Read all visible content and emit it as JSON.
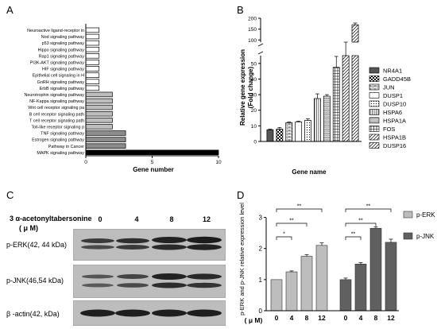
{
  "panels": {
    "A": "A",
    "B": "B",
    "C": "C",
    "D": "D"
  },
  "chart_data": [
    {
      "id": "A",
      "type": "bar",
      "orientation": "horizontal",
      "categories": [
        "Neuroactive ligand-receptor in",
        "Nod signaling pathway",
        "p53 signaling pathway",
        "Hippo signaling pathway",
        "Rap1 signaling pathway",
        "PI3K-AKT signaling pathway",
        "HIF signaling pathway",
        "Epithelial cell signaling in H",
        "GnRH signaling pathway",
        "ErbB signaling pathway",
        "Neurotrophin signaling pathway",
        "NF-Kappa signaling pathway",
        "Wnt cell receptor signaling pa",
        "B cell receptor signaling path",
        "T cell receptor signaling path",
        "Toll-like receptor signaling p",
        "TNF signaling pathway",
        "Estrogen signaling pathway",
        "Pathway in Cancer",
        "MAPK signaling pathway"
      ],
      "values": [
        1,
        1,
        1,
        1,
        1,
        1,
        1,
        1,
        1,
        1,
        2,
        2,
        2,
        2,
        2,
        2,
        3,
        3,
        3,
        10
      ],
      "colors": [
        "#ffffff",
        "#ffffff",
        "#ffffff",
        "#ffffff",
        "#ffffff",
        "#ffffff",
        "#ffffff",
        "#ffffff",
        "#ffffff",
        "#ffffff",
        "#bdbdbd",
        "#bdbdbd",
        "#bdbdbd",
        "#bdbdbd",
        "#bdbdbd",
        "#bdbdbd",
        "#8c8c8c",
        "#8c8c8c",
        "#8c8c8c",
        "#000000"
      ],
      "xlim": [
        0,
        10
      ],
      "xticks": [
        "0",
        "5",
        "10"
      ],
      "xlabel": "Gene number"
    },
    {
      "id": "B",
      "type": "bar",
      "categories": [
        "NR4A1",
        "GADD45B",
        "JUN",
        "DUSP1",
        "DUSP10",
        "HSPA6",
        "HSPA1A",
        "FOS",
        "HSPA1B",
        "DUSP16"
      ],
      "values": [
        7.5,
        8,
        12,
        12.5,
        13.5,
        27.5,
        29,
        47.5,
        85,
        170
      ],
      "errors": [
        0.5,
        1,
        0.5,
        0.5,
        1,
        3,
        1,
        7,
        5,
        8
      ],
      "patterns": [
        "solid",
        "checker",
        "brick",
        "plain",
        "dots",
        "hatch-v",
        "hatch-h",
        "grid",
        "diag",
        "diag"
      ],
      "ylabel": "Relative gene expression\n(Fold change)",
      "xlabel": "Gene name",
      "yticks_lower": [
        "0",
        "10",
        "20",
        "30",
        "40",
        "50"
      ],
      "yticks_upper": [
        "100",
        "150",
        "200"
      ],
      "axis_break": [
        55,
        90
      ],
      "legend_position": "right"
    },
    {
      "id": "D",
      "type": "bar",
      "ylabel": "p-ERK and p-JNK relative expression level",
      "categories": [
        "0",
        "4",
        "8",
        "12"
      ],
      "x_unit": "( μ M)",
      "series": [
        {
          "name": "p-ERK",
          "values": [
            1.0,
            1.25,
            1.75,
            2.1
          ],
          "errors": [
            0,
            0.03,
            0.05,
            0.08
          ],
          "color": "#bdbdbd"
        },
        {
          "name": "p-JNK",
          "values": [
            1.0,
            1.5,
            2.65,
            2.2
          ],
          "errors": [
            0.05,
            0.05,
            0.04,
            0.1
          ],
          "color": "#606060"
        }
      ],
      "ylim": [
        0,
        3.5
      ],
      "yticks": [
        "0",
        "1",
        "2",
        "3"
      ],
      "significance": {
        "p-ERK": [
          {
            "from": "0",
            "to": "4",
            "mark": "*"
          },
          {
            "from": "0",
            "to": "8",
            "mark": "**"
          },
          {
            "from": "0",
            "to": "12",
            "mark": "**"
          }
        ],
        "p-JNK": [
          {
            "from": "0",
            "to": "4",
            "mark": "**"
          },
          {
            "from": "0",
            "to": "8",
            "mark": "**"
          },
          {
            "from": "0",
            "to": "12",
            "mark": "**"
          }
        ]
      },
      "legend_position": "right"
    }
  ],
  "blot": {
    "treatment": "3 α-acetonyltabersonine",
    "unit": "( μ M)",
    "doses": [
      "0",
      "4",
      "8",
      "12"
    ],
    "rows": [
      {
        "label": "p-ERK(42, 44 kDa)"
      },
      {
        "label": "p-JNK(46,54 kDa)"
      },
      {
        "label": "β -actin(42, kDa)"
      }
    ]
  }
}
